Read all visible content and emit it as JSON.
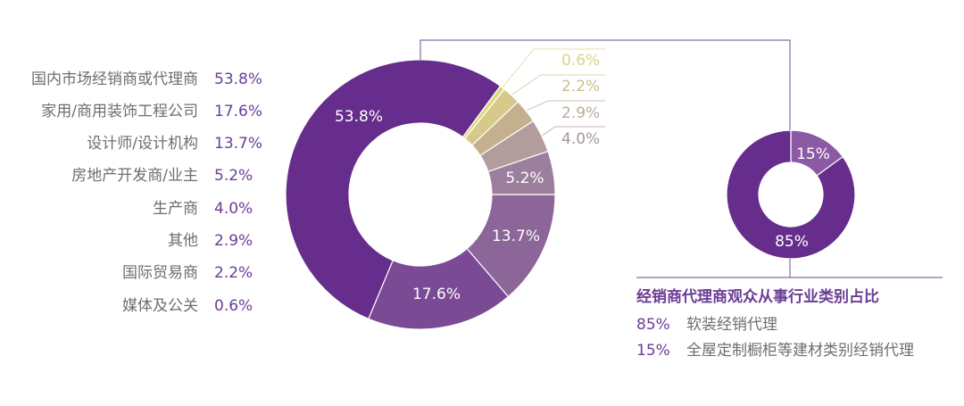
{
  "chart_data": [
    {
      "type": "pie",
      "subtype": "donut",
      "title": "",
      "categories": [
        "国内市场经销商或代理商",
        "家用/商用装饰工程公司",
        "设计师/设计机构",
        "房地产开发商/业主",
        "生产商",
        "其他",
        "国际贸易商",
        "媒体及公关"
      ],
      "values": [
        53.8,
        17.6,
        13.7,
        5.2,
        4.0,
        2.9,
        2.2,
        0.6
      ],
      "value_labels": [
        "53.8%",
        "17.6%",
        "13.7%",
        "5.2%",
        "4.0%",
        "2.9%",
        "2.2%",
        "0.6%"
      ],
      "colors": [
        "#662d8c",
        "#7b4a95",
        "#8c6699",
        "#9c7e9d",
        "#b39c9c",
        "#c4b08f",
        "#d6c98a",
        "#e0d97a"
      ],
      "legend_position": "left",
      "unit": "%"
    },
    {
      "type": "pie",
      "subtype": "donut",
      "title": "经销商代理商观众从事行业类别占比",
      "categories": [
        "软装经销代理",
        "全屋定制橱柜等建材类别经销代理"
      ],
      "values": [
        85,
        15
      ],
      "value_labels": [
        "85%",
        "15%"
      ],
      "colors": [
        "#662d8c",
        "#8c5aa5"
      ],
      "legend_position": "bottom",
      "unit": "%"
    }
  ],
  "legend": {
    "rows": [
      {
        "label": "国内市场经销商或代理商",
        "value": "53.8%"
      },
      {
        "label": "家用/商用装饰工程公司",
        "value": "17.6%"
      },
      {
        "label": "设计师/设计机构",
        "value": "13.7%"
      },
      {
        "label": "房地产开发商/业主",
        "value": "5.2%"
      },
      {
        "label": "生产商",
        "value": "4.0%"
      },
      {
        "label": "其他",
        "value": "2.9%"
      },
      {
        "label": "国际贸易商",
        "value": "2.2%"
      },
      {
        "label": "媒体及公关",
        "value": "0.6%"
      }
    ]
  },
  "main_donut": {
    "inner_labels": {
      "s0": "53.8%",
      "s1": "17.6%",
      "s2": "13.7%",
      "s3": "5.2%"
    },
    "callouts": [
      {
        "value": "0.6%",
        "color": "#d9d48a"
      },
      {
        "value": "2.2%",
        "color": "#cbbf8f"
      },
      {
        "value": "2.9%",
        "color": "#bdaa98"
      },
      {
        "value": "4.0%",
        "color": "#a8949e"
      }
    ]
  },
  "sub_donut": {
    "inner_labels": {
      "big": "85%",
      "small": "15%"
    },
    "title": "经销商代理商观众从事行业类别占比",
    "rows": [
      {
        "pct": "85%",
        "text": "软装经销代理"
      },
      {
        "pct": "15%",
        "text": "全屋定制橱柜等建材类别经销代理"
      }
    ]
  },
  "colors": {
    "accent": "#6a3d94",
    "connector": "#8a6aa8",
    "label_gray": "#6e6e6e"
  }
}
